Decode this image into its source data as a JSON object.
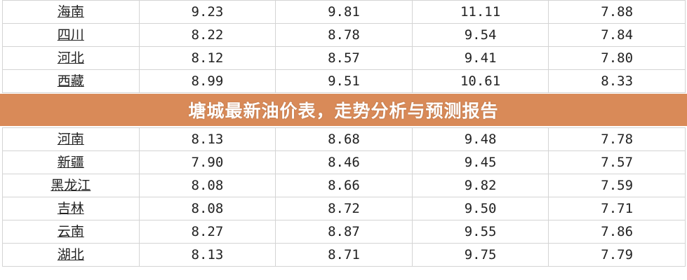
{
  "table": {
    "rows": [
      [
        "海南",
        "9.23",
        "9.81",
        "11.11",
        "7.88"
      ],
      [
        "四川",
        "8.22",
        "8.78",
        "9.54",
        "7.84"
      ],
      [
        "河北",
        "8.12",
        "8.57",
        "9.41",
        "7.80"
      ],
      [
        "西藏",
        "8.99",
        "9.51",
        "10.61",
        "8.33"
      ],
      [
        "河南",
        "8.13",
        "8.68",
        "9.48",
        "7.78"
      ],
      [
        "新疆",
        "7.90",
        "8.46",
        "9.45",
        "7.57"
      ],
      [
        "黑龙江",
        "8.08",
        "8.66",
        "9.82",
        "7.59"
      ],
      [
        "吉林",
        "8.08",
        "8.72",
        "9.50",
        "7.71"
      ],
      [
        "云南",
        "8.27",
        "8.87",
        "9.55",
        "7.86"
      ],
      [
        "湖北",
        "8.13",
        "8.71",
        "9.75",
        "7.79"
      ]
    ]
  },
  "banner": {
    "title": "塘城最新油价表，走势分析与预测报告",
    "color": "#d6804a"
  }
}
